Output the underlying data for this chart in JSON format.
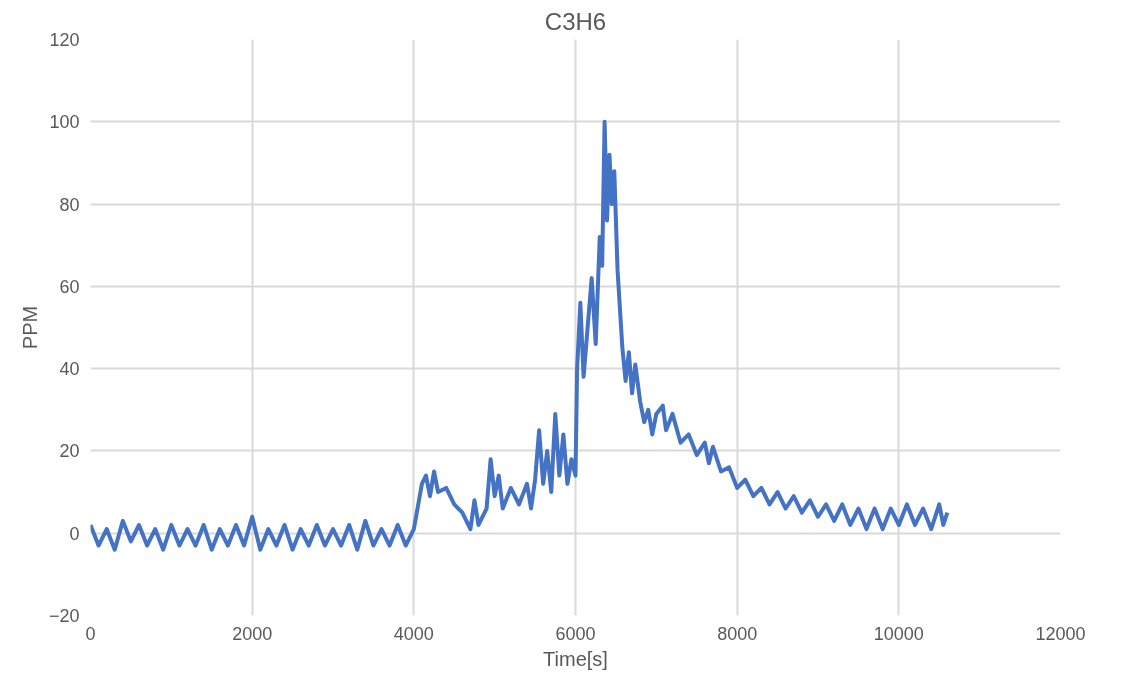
{
  "chart_data": {
    "type": "line",
    "title": "C3H6",
    "xlabel": "Time[s]",
    "ylabel": "PPM",
    "xlim": [
      0,
      12000
    ],
    "xticks": [
      0,
      2000,
      4000,
      6000,
      8000,
      10000,
      12000
    ],
    "ylim": [
      -20,
      120
    ],
    "yticks": [
      -20,
      0,
      20,
      40,
      60,
      80,
      100,
      120
    ],
    "grid": true,
    "line_style": "solid",
    "x": [
      0,
      100,
      200,
      300,
      400,
      500,
      600,
      700,
      800,
      900,
      1000,
      1100,
      1200,
      1300,
      1400,
      1500,
      1600,
      1700,
      1800,
      1900,
      2000,
      2100,
      2200,
      2300,
      2400,
      2500,
      2600,
      2700,
      2800,
      2900,
      3000,
      3100,
      3200,
      3300,
      3400,
      3500,
      3600,
      3700,
      3800,
      3900,
      4000,
      4100,
      4150,
      4200,
      4250,
      4300,
      4400,
      4500,
      4600,
      4700,
      4750,
      4800,
      4900,
      4950,
      5000,
      5050,
      5100,
      5200,
      5300,
      5400,
      5450,
      5500,
      5550,
      5600,
      5650,
      5700,
      5750,
      5800,
      5850,
      5900,
      5950,
      6000,
      6020,
      6060,
      6100,
      6150,
      6200,
      6250,
      6300,
      6330,
      6360,
      6390,
      6420,
      6450,
      6480,
      6520,
      6580,
      6620,
      6660,
      6700,
      6740,
      6800,
      6850,
      6900,
      6950,
      7000,
      7080,
      7120,
      7200,
      7300,
      7400,
      7500,
      7600,
      7650,
      7700,
      7800,
      7900,
      8000,
      8100,
      8200,
      8300,
      8400,
      8500,
      8600,
      8700,
      8800,
      8900,
      9000,
      9100,
      9200,
      9300,
      9400,
      9500,
      9600,
      9700,
      9800,
      9900,
      10000,
      10100,
      10200,
      10300,
      10400,
      10500,
      10550,
      10600
    ],
    "series": [
      {
        "color": "#4472c4",
        "values": [
          2,
          -3,
          1,
          -4,
          3,
          -2,
          2,
          -3,
          1,
          -4,
          2,
          -3,
          1,
          -3,
          2,
          -4,
          1,
          -3,
          2,
          -3,
          4,
          -4,
          1,
          -3,
          2,
          -4,
          1,
          -3,
          2,
          -3,
          1,
          -3,
          2,
          -4,
          3,
          -3,
          1,
          -3,
          2,
          -3,
          1,
          12,
          14,
          9,
          15,
          10,
          11,
          7,
          5,
          1,
          8,
          2,
          6,
          18,
          9,
          14,
          6,
          11,
          7,
          12,
          6,
          13,
          25,
          12,
          20,
          10,
          29,
          14,
          24,
          12,
          18,
          14,
          40,
          56,
          38,
          50,
          62,
          46,
          72,
          65,
          100,
          76,
          92,
          80,
          88,
          64,
          45,
          37,
          44,
          34,
          41,
          32,
          27,
          30,
          24,
          29,
          31,
          25,
          29,
          22,
          24,
          19,
          22,
          17,
          21,
          15,
          16,
          11,
          13,
          9,
          11,
          7,
          10,
          6,
          9,
          5,
          8,
          4,
          7,
          3,
          7,
          2,
          6,
          1,
          6,
          1,
          6,
          2,
          7,
          2,
          6,
          1,
          7,
          2,
          5
        ]
      }
    ]
  }
}
